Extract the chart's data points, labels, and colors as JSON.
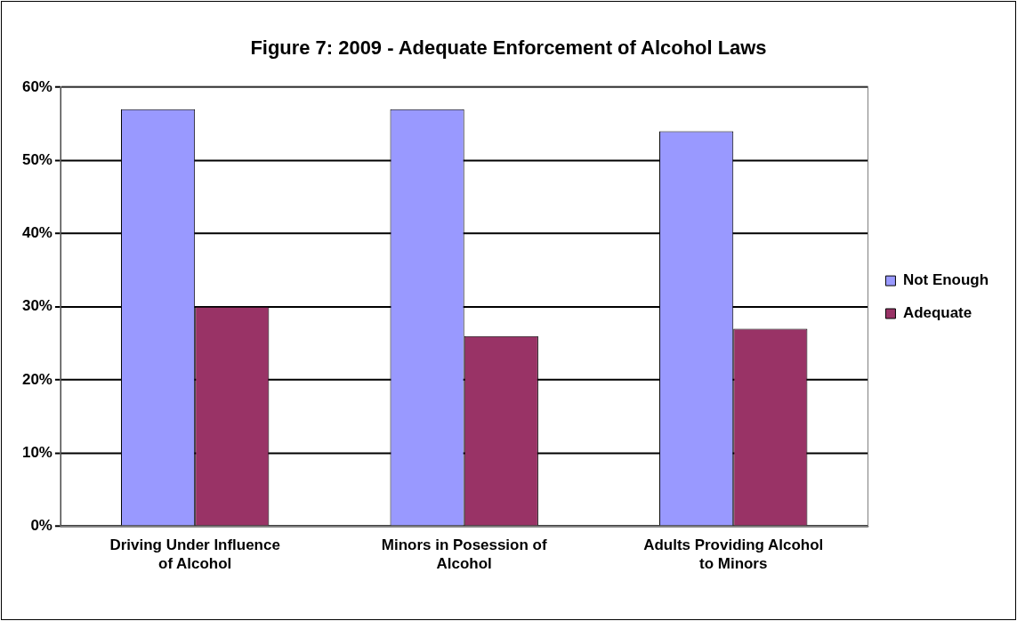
{
  "chart_data": {
    "type": "bar",
    "title": "Figure 7: 2009 - Adequate Enforcement of Alcohol Laws",
    "categories": [
      "Driving Under Influence of Alcohol",
      "Minors in Posession of Alcohol",
      "Adults Providing Alcohol to Minors"
    ],
    "series": [
      {
        "name": "Not Enough",
        "color": "#9999ff",
        "values": [
          57,
          57,
          54
        ]
      },
      {
        "name": "Adequate",
        "color": "#993366",
        "values": [
          30,
          26,
          27
        ]
      }
    ],
    "ylim": [
      0,
      60
    ],
    "yticks": [
      {
        "value": 0,
        "label": "0%"
      },
      {
        "value": 10,
        "label": "10%"
      },
      {
        "value": 20,
        "label": "20%"
      },
      {
        "value": 30,
        "label": "30%"
      },
      {
        "value": 40,
        "label": "40%"
      },
      {
        "value": 50,
        "label": "50%"
      },
      {
        "value": 60,
        "label": "60%"
      }
    ],
    "grid": "y",
    "legend": "right"
  }
}
